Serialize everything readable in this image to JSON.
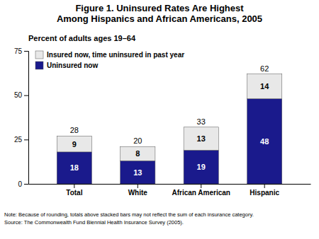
{
  "chart_data": {
    "type": "bar",
    "stacked": true,
    "title": "Figure 1. Uninsured Rates Are Highest\nAmong Hispanics and African Americans, 2005",
    "subtitle": "Percent of adults ages 19–64",
    "categories": [
      "Total",
      "White",
      "African American",
      "Hispanic"
    ],
    "series": [
      {
        "name": "Uninsured now",
        "color": "#1a1a8c",
        "values": [
          18,
          13,
          19,
          48
        ]
      },
      {
        "name": "Insured now, time uninsured in past year",
        "color": "#e8e8e8",
        "values": [
          9,
          8,
          13,
          14
        ]
      }
    ],
    "totals": [
      28,
      20,
      33,
      62
    ],
    "data_labels": true,
    "ylim": [
      0,
      75
    ],
    "yticks": [
      0,
      25,
      50,
      75
    ],
    "grid": false,
    "legend": "upper left",
    "note": "Note: Because of rounding, totals above stacked bars may not reflect the sum of each insurance category.\nSource: The Commonwealth Fund Biennial Health Insurance Survey (2005)."
  }
}
